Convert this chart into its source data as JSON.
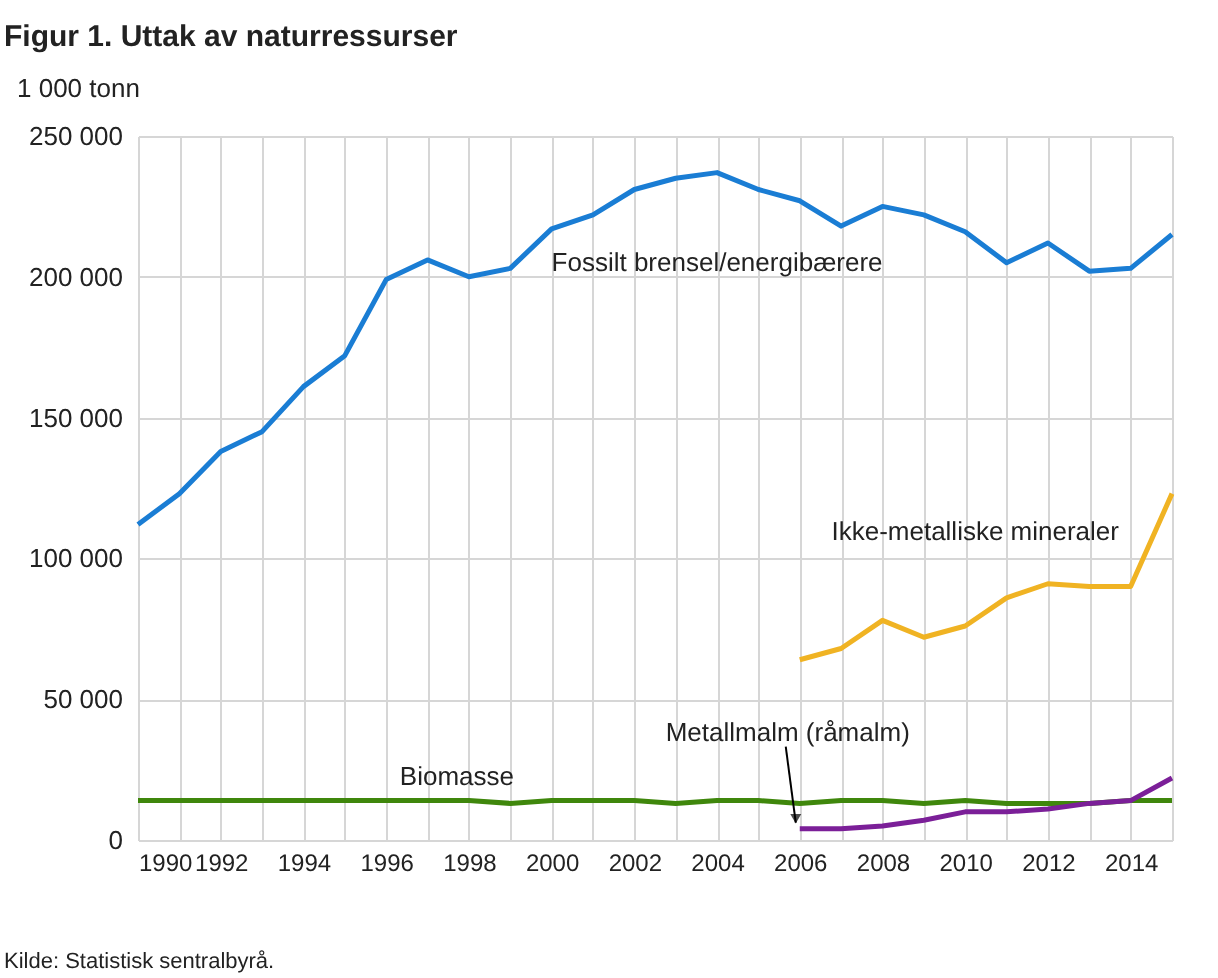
{
  "chart_data": {
    "type": "line",
    "title": "Figur 1. Uttak av naturressurser",
    "ylabel": "1 000 tonn",
    "x": [
      1990,
      1991,
      1992,
      1993,
      1994,
      1995,
      1996,
      1997,
      1998,
      1999,
      2000,
      2001,
      2002,
      2003,
      2004,
      2005,
      2006,
      2007,
      2008,
      2009,
      2010,
      2011,
      2012,
      2013,
      2014,
      2015
    ],
    "series": [
      {
        "name": "Fossilt brensel/energibærere",
        "color": "#1a7dd4",
        "values": [
          112000,
          123000,
          138000,
          145000,
          161000,
          172000,
          199000,
          206000,
          200000,
          203000,
          217000,
          222000,
          231000,
          235000,
          237000,
          231000,
          227000,
          218000,
          225000,
          222000,
          216000,
          205000,
          212000,
          202000,
          203000,
          215000
        ]
      },
      {
        "name": "Ikke-metalliske mineraler",
        "color": "#f0b323",
        "values": [
          null,
          null,
          null,
          null,
          null,
          null,
          null,
          null,
          null,
          null,
          null,
          null,
          null,
          null,
          null,
          null,
          64000,
          68000,
          78000,
          72000,
          76000,
          86000,
          91000,
          90000,
          90000,
          123000
        ]
      },
      {
        "name": "Biomasse",
        "color": "#3f870c",
        "values": [
          14000,
          14000,
          14000,
          14000,
          14000,
          14000,
          14000,
          14000,
          14000,
          13000,
          14000,
          14000,
          14000,
          13000,
          14000,
          14000,
          13000,
          14000,
          14000,
          13000,
          14000,
          13000,
          13000,
          13000,
          14000,
          14000
        ]
      },
      {
        "name": "Metallmalm (råmalm)",
        "color": "#7b1f98",
        "values": [
          null,
          null,
          null,
          null,
          null,
          null,
          null,
          null,
          null,
          null,
          null,
          null,
          null,
          null,
          null,
          null,
          4000,
          4000,
          5000,
          7000,
          10000,
          10000,
          11000,
          13000,
          14000,
          22000
        ]
      }
    ],
    "xlim": [
      1990,
      2015
    ],
    "xticks": [
      1990,
      {
        "value": 1991,
        "label": null
      },
      1992,
      {
        "value": 1993,
        "label": null
      },
      1994,
      {
        "value": 1995,
        "label": null
      },
      1996,
      {
        "value": 1997,
        "label": null
      },
      1998,
      {
        "value": 1999,
        "label": null
      },
      2000,
      {
        "value": 2001,
        "label": null
      },
      2002,
      {
        "value": 2003,
        "label": null
      },
      2004,
      {
        "value": 2005,
        "label": null
      },
      2006,
      {
        "value": 2007,
        "label": null
      },
      2008,
      {
        "value": 2009,
        "label": null
      },
      2010,
      {
        "value": 2011,
        "label": null
      },
      2012,
      {
        "value": 2013,
        "label": null
      },
      2014,
      {
        "value": 2015,
        "label": null
      }
    ],
    "ylim": [
      0,
      250000
    ],
    "yticks": [
      0,
      {
        "value": 50000,
        "label": "50 000"
      },
      {
        "value": 100000,
        "label": "100 000"
      },
      {
        "value": 150000,
        "label": "150 000"
      },
      {
        "value": 200000,
        "label": "200 000"
      },
      {
        "value": 250000,
        "label": "250 000"
      }
    ],
    "grid": true,
    "legend": false,
    "annotations": [
      "Kilde: Statistisk sentralbyrå."
    ]
  }
}
